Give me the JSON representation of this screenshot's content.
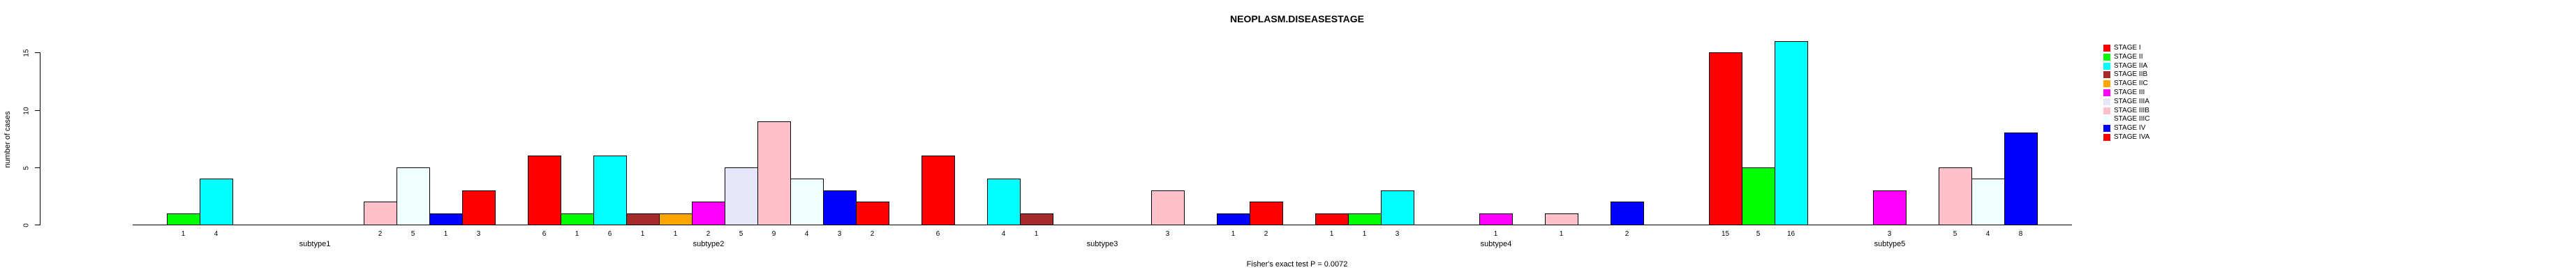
{
  "title": "NEOPLASM.DISEASESTAGE",
  "annotation": "Fisher's exact test P = 0.0072",
  "y_axis": {
    "label": "number of cases",
    "ticks": [
      0,
      5,
      10,
      15
    ]
  },
  "chart_data": {
    "type": "bar",
    "title": "NEOPLASM.DISEASESTAGE",
    "annotation": "Fisher's exact test P = 0.0072",
    "xlabel": "",
    "ylabel": "number of cases",
    "ylim": [
      0,
      16.5
    ],
    "yticks": [
      0,
      5,
      10,
      15
    ],
    "grid": false,
    "bar_value_labels": true,
    "legend_position": "right",
    "categories": [
      "subtype1",
      "subtype2",
      "subtype3",
      "subtype4",
      "subtype5"
    ],
    "series": [
      {
        "name": "STAGE I",
        "color": "#FF0000",
        "values": [
          0,
          6,
          6,
          1,
          15
        ]
      },
      {
        "name": "STAGE II",
        "color": "#00FF00",
        "values": [
          1,
          1,
          0,
          1,
          5
        ]
      },
      {
        "name": "STAGE IIA",
        "color": "#00FFFF",
        "values": [
          4,
          6,
          4,
          3,
          16
        ]
      },
      {
        "name": "STAGE IIB",
        "color": "#A52A2A",
        "values": [
          0,
          1,
          1,
          0,
          0
        ]
      },
      {
        "name": "STAGE IIC",
        "color": "#FFA500",
        "values": [
          0,
          1,
          0,
          0,
          0
        ]
      },
      {
        "name": "STAGE III",
        "color": "#FF00FF",
        "values": [
          0,
          2,
          0,
          1,
          3
        ]
      },
      {
        "name": "STAGE IIIA",
        "color": "#E6E6FA",
        "values": [
          0,
          5,
          0,
          0,
          0
        ]
      },
      {
        "name": "STAGE IIIB",
        "color": "#FFC0CB",
        "values": [
          2,
          9,
          3,
          1,
          5
        ]
      },
      {
        "name": "STAGE IIIC",
        "color": "#F0FFFF",
        "values": [
          5,
          4,
          0,
          0,
          4
        ]
      },
      {
        "name": "STAGE IV",
        "color": "#0000FF",
        "values": [
          1,
          3,
          1,
          2,
          8
        ]
      },
      {
        "name": "STAGE IVA",
        "color": "#FF0000",
        "values": [
          3,
          2,
          2,
          0,
          0
        ]
      }
    ]
  }
}
